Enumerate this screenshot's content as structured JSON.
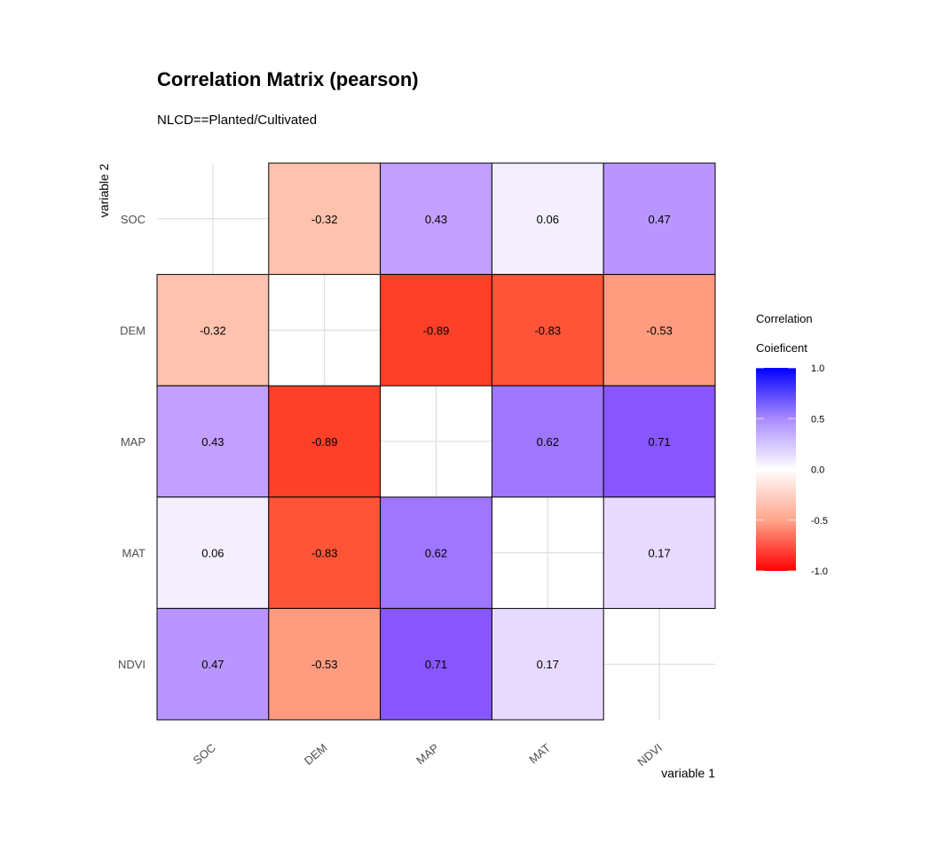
{
  "chart_data": {
    "type": "heatmap",
    "title": "Correlation Matrix (pearson)",
    "subtitle": "NLCD==Planted/Cultivated",
    "xlabel": "variable 1",
    "ylabel": "variable 2",
    "x_categories": [
      "SOC",
      "DEM",
      "MAP",
      "MAT",
      "NDVI"
    ],
    "y_categories": [
      "SOC",
      "DEM",
      "MAP",
      "MAT",
      "NDVI"
    ],
    "values": [
      [
        null,
        -0.32,
        0.43,
        0.06,
        0.47
      ],
      [
        -0.32,
        null,
        -0.89,
        -0.83,
        -0.53
      ],
      [
        0.43,
        -0.89,
        null,
        0.62,
        0.71
      ],
      [
        0.06,
        -0.83,
        0.62,
        null,
        0.17
      ],
      [
        0.47,
        -0.53,
        0.71,
        0.17,
        null
      ]
    ],
    "value_range": [
      -1,
      1
    ],
    "grid": true,
    "legend": {
      "title_line1": "Correlation",
      "title_line2": "Coieficent",
      "position": "right",
      "ticks": [
        "1.0",
        "0.5",
        "0.0",
        "-0.5",
        "-1.0"
      ],
      "tick_values": [
        1,
        0.5,
        0,
        -0.5,
        -1
      ],
      "low_color": "#FF0000",
      "mid_color": "#FFFFFF",
      "high_color": "#0000FF"
    }
  }
}
